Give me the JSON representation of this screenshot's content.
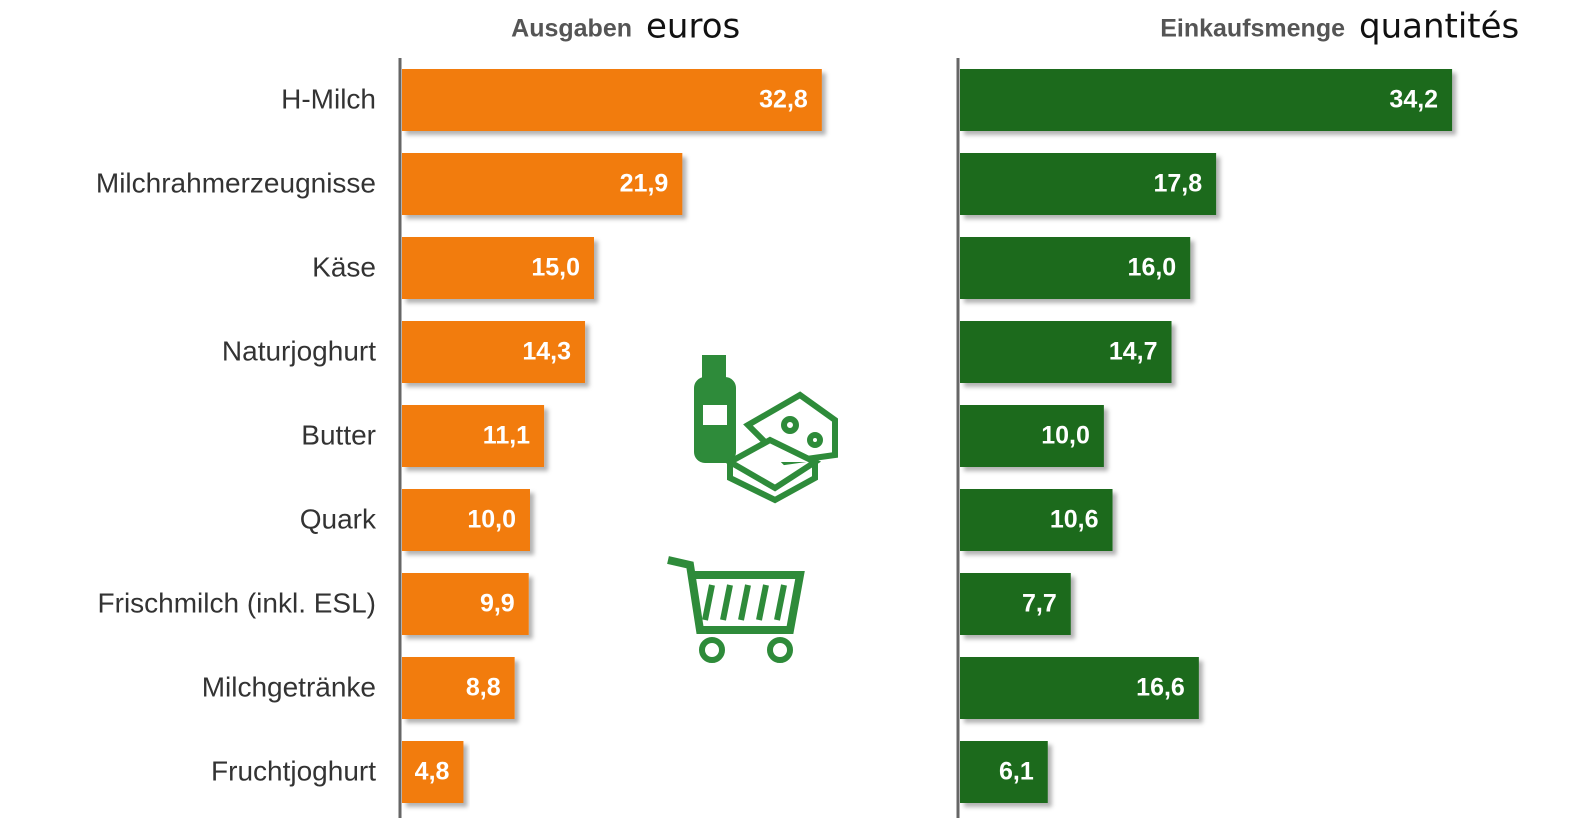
{
  "chart_data": [
    {
      "type": "barh",
      "title": "Ausgaben",
      "subtitle": "euros",
      "color": "#f27c0c",
      "xlim": [
        0,
        35
      ],
      "categories": [
        "H-Milch",
        "Milchrahmerzeugnisse",
        "Käse",
        "Naturjoghurt",
        "Butter",
        "Quark",
        "Frischmilch (inkl. ESL)",
        "Milchgetränke",
        "Fruchtjoghurt"
      ],
      "values": [
        32.8,
        21.9,
        15.0,
        14.3,
        11.1,
        10.0,
        9.9,
        8.8,
        4.8
      ],
      "value_labels": [
        "32,8",
        "21,9",
        "15,0",
        "14,3",
        "11,1",
        "10,0",
        "9,9",
        "8,8",
        "4,8"
      ]
    },
    {
      "type": "barh",
      "title": "Einkaufsmenge",
      "subtitle": "quantités",
      "color": "#1e6b1e",
      "xlim": [
        0,
        36
      ],
      "values": [
        34.2,
        17.8,
        16.0,
        14.7,
        10.0,
        10.6,
        7.7,
        16.6,
        6.1
      ],
      "value_labels": [
        "34,2",
        "17,8",
        "16,0",
        "14,7",
        "10,0",
        "10,6",
        "7,7",
        "16,6",
        "6,1"
      ]
    }
  ]
}
